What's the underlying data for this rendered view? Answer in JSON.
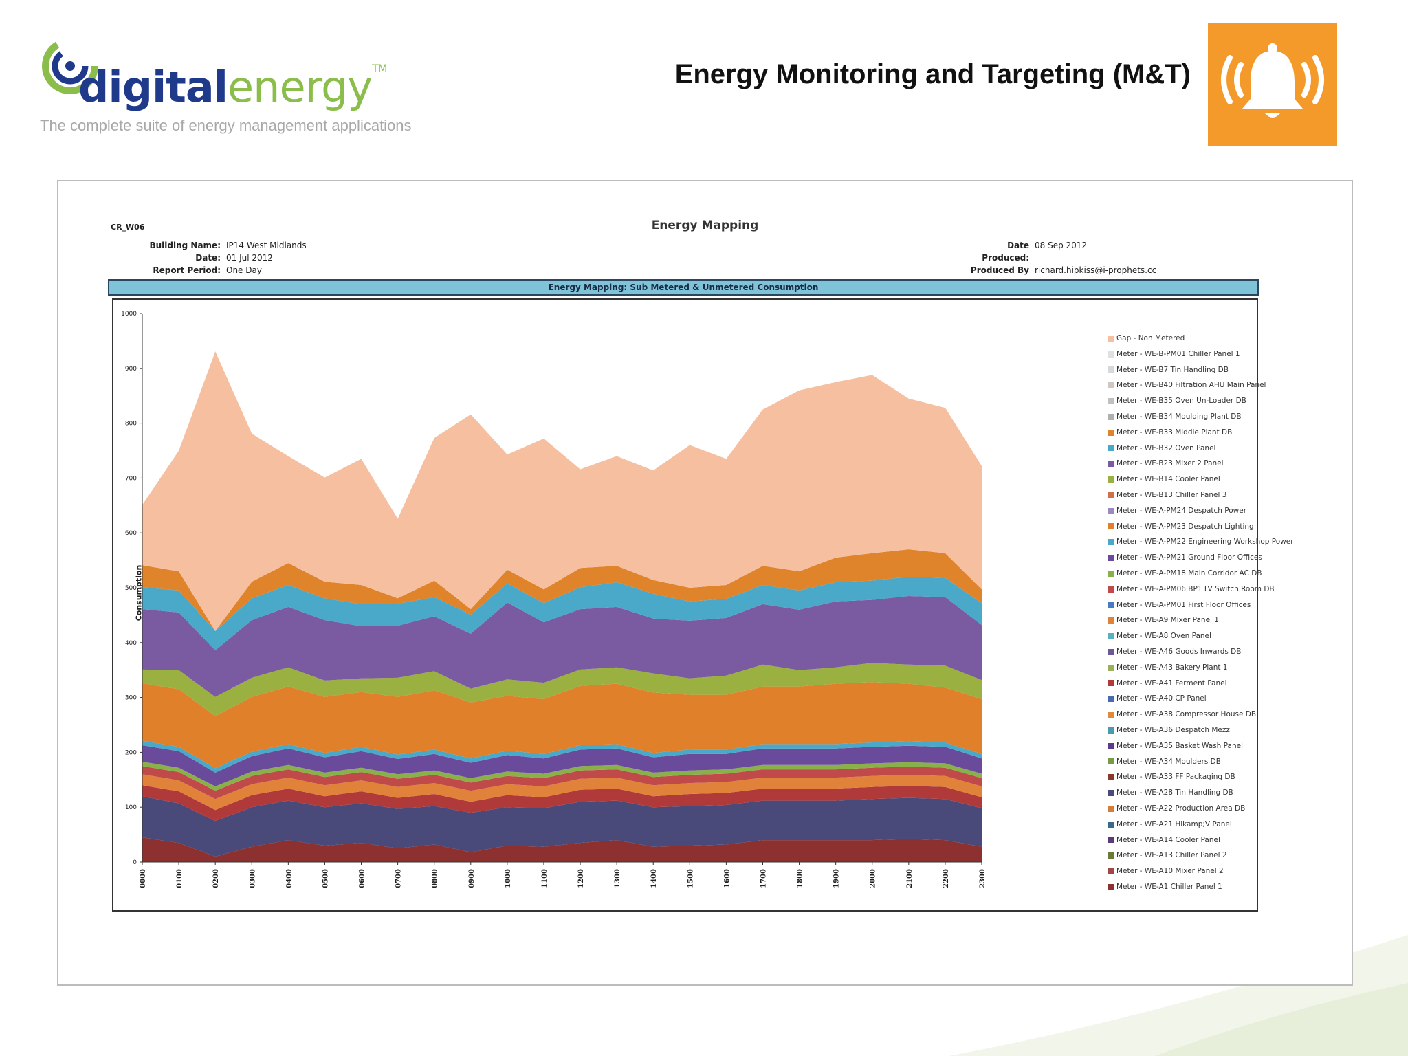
{
  "logo": {
    "word_dark": "digital",
    "word_light": "energy",
    "tm": "TM",
    "tagline": "The complete suite of energy management applications"
  },
  "header": {
    "title": "Energy Monitoring and Targeting (M&T)",
    "icon": "bell-alarm-icon"
  },
  "colors": {
    "accent": "#f39a2b",
    "logo_blue": "#1f3a8a",
    "logo_green": "#8bbd4a",
    "banner": "#7ec3d8"
  },
  "report": {
    "id": "CR_W06",
    "title": "Energy Mapping",
    "meta_left": [
      {
        "label": "Building Name:",
        "value": "IP14 West Midlands"
      },
      {
        "label": "Date:",
        "value": "01 Jul 2012"
      },
      {
        "label": "Report Period:",
        "value": "One Day"
      }
    ],
    "meta_right": [
      {
        "label": "Date Produced:",
        "value": "08 Sep 2012"
      },
      {
        "label": "Produced By :",
        "value": "richard.hipkiss@i-prophets.cc"
      }
    ],
    "banner": "Energy Mapping: Sub Metered & Unmetered Consumption"
  },
  "chart_data": {
    "type": "area",
    "stacked": true,
    "title": "Energy Mapping: Sub Metered & Unmetered Consumption",
    "ylabel": "Consumption",
    "xlabel": "",
    "ylim": [
      0,
      1000
    ],
    "yticks": [
      0,
      100,
      200,
      300,
      400,
      500,
      600,
      700,
      800,
      900,
      1000
    ],
    "categories": [
      "0000",
      "0100",
      "0200",
      "0300",
      "0400",
      "0500",
      "0600",
      "0700",
      "0800",
      "0900",
      "1000",
      "1100",
      "1200",
      "1300",
      "1400",
      "1500",
      "1600",
      "1700",
      "1800",
      "1900",
      "2000",
      "2100",
      "2200",
      "2300"
    ],
    "legend_position": "right",
    "series": [
      {
        "name": "Meter - WE-A1 Chiller Panel 1",
        "color": "#8c3030",
        "values": [
          45,
          35,
          10,
          28,
          40,
          30,
          35,
          25,
          32,
          18,
          30,
          28,
          35,
          40,
          28,
          30,
          32,
          40,
          40,
          40,
          40,
          42,
          40,
          28
        ]
      },
      {
        "name": "Meter - WE-A10 Mixer Panel 2",
        "color": "#a04848",
        "values": [
          0,
          0,
          0,
          0,
          0,
          0,
          0,
          0,
          0,
          0,
          0,
          0,
          0,
          0,
          0,
          0,
          0,
          0,
          0,
          0,
          0,
          0,
          0,
          0
        ]
      },
      {
        "name": "Meter - WE-A13 Chiller Panel 2",
        "color": "#6a7a3a",
        "values": [
          0,
          0,
          0,
          0,
          0,
          0,
          0,
          0,
          0,
          0,
          0,
          0,
          0,
          0,
          0,
          0,
          0,
          0,
          0,
          0,
          0,
          0,
          0,
          0
        ]
      },
      {
        "name": "Meter - WE-A14 Cooler Panel",
        "color": "#5a3a7a",
        "values": [
          0,
          0,
          0,
          0,
          0,
          0,
          0,
          0,
          0,
          0,
          0,
          0,
          0,
          0,
          0,
          0,
          0,
          0,
          0,
          0,
          0,
          0,
          0,
          0
        ]
      },
      {
        "name": "Meter - WE-A21 Hikamp;V Panel",
        "color": "#3a6a8a",
        "values": [
          0,
          0,
          0,
          0,
          0,
          0,
          0,
          0,
          0,
          0,
          0,
          0,
          0,
          0,
          0,
          0,
          0,
          0,
          0,
          0,
          0,
          0,
          0,
          0
        ]
      },
      {
        "name": "Meter - WE-A22 Production Area DB",
        "color": "#d47e3a",
        "values": [
          0,
          0,
          0,
          0,
          0,
          0,
          0,
          0,
          0,
          0,
          0,
          0,
          0,
          0,
          0,
          0,
          0,
          0,
          0,
          0,
          0,
          0,
          0,
          0
        ]
      },
      {
        "name": "Meter - WE-A28 Tin Handling DB",
        "color": "#4a4a7a",
        "values": [
          75,
          72,
          65,
          72,
          72,
          70,
          72,
          72,
          70,
          72,
          70,
          70,
          75,
          72,
          72,
          72,
          72,
          72,
          72,
          72,
          75,
          75,
          75,
          70
        ]
      },
      {
        "name": "Meter - WE-A33 FF Packaging DB",
        "color": "#8a3a2a",
        "values": [
          0,
          0,
          0,
          0,
          0,
          0,
          0,
          0,
          0,
          0,
          0,
          0,
          0,
          0,
          0,
          0,
          0,
          0,
          0,
          0,
          0,
          0,
          0,
          0
        ]
      },
      {
        "name": "Meter - WE-A34 Moulders DB",
        "color": "#7a9a4a",
        "values": [
          0,
          0,
          0,
          0,
          0,
          0,
          0,
          0,
          0,
          0,
          0,
          0,
          0,
          0,
          0,
          0,
          0,
          0,
          0,
          0,
          0,
          0,
          0,
          0
        ]
      },
      {
        "name": "Meter - WE-A35 Basket Wash Panel",
        "color": "#5a3a8a",
        "values": [
          0,
          0,
          0,
          0,
          0,
          0,
          0,
          0,
          0,
          0,
          0,
          0,
          0,
          0,
          0,
          0,
          0,
          0,
          0,
          0,
          0,
          0,
          0,
          0
        ]
      },
      {
        "name": "Meter - WE-A36 Despatch Mezz",
        "color": "#4a9ab0",
        "values": [
          0,
          0,
          0,
          0,
          0,
          0,
          0,
          0,
          0,
          0,
          0,
          0,
          0,
          0,
          0,
          0,
          0,
          0,
          0,
          0,
          0,
          0,
          0,
          0
        ]
      },
      {
        "name": "Meter - WE-A38 Compressor House DB",
        "color": "#e08a3a",
        "values": [
          0,
          0,
          0,
          0,
          0,
          0,
          0,
          0,
          0,
          0,
          0,
          0,
          0,
          0,
          0,
          0,
          0,
          0,
          0,
          0,
          0,
          0,
          0,
          0
        ]
      },
      {
        "name": "Meter - WE-A40 CP Panel",
        "color": "#4a6ab0",
        "values": [
          0,
          0,
          0,
          0,
          0,
          0,
          0,
          0,
          0,
          0,
          0,
          0,
          0,
          0,
          0,
          0,
          0,
          0,
          0,
          0,
          0,
          0,
          0,
          0
        ]
      },
      {
        "name": "Meter - WE-A41 Ferment Panel",
        "color": "#b03a3a",
        "values": [
          20,
          22,
          20,
          22,
          22,
          20,
          22,
          20,
          22,
          20,
          22,
          20,
          22,
          22,
          20,
          22,
          22,
          22,
          22,
          22,
          22,
          22,
          22,
          20
        ]
      },
      {
        "name": "Meter - WE-A43 Bakery Plant 1",
        "color": "#9ab05a",
        "values": [
          0,
          0,
          0,
          0,
          0,
          0,
          0,
          0,
          0,
          0,
          0,
          0,
          0,
          0,
          0,
          0,
          0,
          0,
          0,
          0,
          0,
          0,
          0,
          0
        ]
      },
      {
        "name": "Meter - WE-A46 Goods Inwards DB",
        "color": "#6a5a9a",
        "values": [
          0,
          0,
          0,
          0,
          0,
          0,
          0,
          0,
          0,
          0,
          0,
          0,
          0,
          0,
          0,
          0,
          0,
          0,
          0,
          0,
          0,
          0,
          0,
          0
        ]
      },
      {
        "name": "Meter - WE-A8 Oven Panel",
        "color": "#5ab0c0",
        "values": [
          0,
          0,
          0,
          0,
          0,
          0,
          0,
          0,
          0,
          0,
          0,
          0,
          0,
          0,
          0,
          0,
          0,
          0,
          0,
          0,
          0,
          0,
          0,
          0
        ]
      },
      {
        "name": "Meter - WE-A9 Mixer Panel 1",
        "color": "#e0823a",
        "values": [
          20,
          20,
          20,
          20,
          20,
          20,
          20,
          20,
          20,
          20,
          20,
          20,
          20,
          20,
          20,
          20,
          20,
          20,
          20,
          20,
          20,
          20,
          20,
          20
        ]
      },
      {
        "name": "Meter - WE-A-PM01 First Floor Offices",
        "color": "#4a7ac0",
        "values": [
          0,
          0,
          0,
          0,
          0,
          0,
          0,
          0,
          0,
          0,
          0,
          0,
          0,
          0,
          0,
          0,
          0,
          0,
          0,
          0,
          0,
          0,
          0,
          0
        ]
      },
      {
        "name": "Meter - WE-A-PM06 BP1 LV Switch Room DB",
        "color": "#c04a4a",
        "values": [
          15,
          15,
          15,
          15,
          15,
          15,
          15,
          15,
          15,
          15,
          15,
          15,
          15,
          15,
          15,
          15,
          15,
          15,
          15,
          15,
          15,
          15,
          15,
          15
        ]
      },
      {
        "name": "Meter - WE-A-PM18 Main Corridor AC DB",
        "color": "#8ab04a",
        "values": [
          8,
          8,
          8,
          8,
          8,
          8,
          8,
          8,
          8,
          8,
          8,
          8,
          8,
          8,
          8,
          8,
          8,
          8,
          8,
          8,
          8,
          8,
          8,
          8
        ]
      },
      {
        "name": "Meter - WE-A-PM21 Ground Floor Offices",
        "color": "#6a4a9a",
        "values": [
          30,
          30,
          25,
          28,
          30,
          28,
          30,
          28,
          30,
          28,
          30,
          28,
          30,
          30,
          28,
          30,
          28,
          30,
          30,
          30,
          30,
          30,
          30,
          28
        ]
      },
      {
        "name": "Meter - WE-A-PM22 Engineering Workshop Power",
        "color": "#4aa8c8",
        "values": [
          8,
          8,
          8,
          8,
          8,
          8,
          8,
          8,
          8,
          8,
          8,
          8,
          8,
          8,
          8,
          8,
          8,
          8,
          8,
          8,
          8,
          8,
          8,
          8
        ]
      },
      {
        "name": "Meter - WE-A-PM23 Despatch Lighting",
        "color": "#e0802a",
        "values": [
          105,
          105,
          95,
          100,
          105,
          102,
          100,
          105,
          108,
          102,
          100,
          100,
          108,
          110,
          110,
          100,
          100,
          105,
          105,
          110,
          110,
          105,
          100,
          100
        ]
      },
      {
        "name": "Meter - WE-A-PM24 Despatch Power",
        "color": "#9a8ac0",
        "values": [
          0,
          0,
          0,
          0,
          0,
          0,
          0,
          0,
          0,
          0,
          0,
          0,
          0,
          0,
          0,
          0,
          0,
          0,
          0,
          0,
          0,
          0,
          0,
          0
        ]
      },
      {
        "name": "Meter - WE-B13 Chiller Panel 3",
        "color": "#d0704a",
        "values": [
          0,
          0,
          0,
          0,
          0,
          0,
          0,
          0,
          0,
          0,
          0,
          0,
          0,
          0,
          0,
          0,
          0,
          0,
          0,
          0,
          0,
          0,
          0,
          0
        ]
      },
      {
        "name": "Meter - WE-B14 Cooler Panel",
        "color": "#9ab040",
        "values": [
          25,
          35,
          35,
          35,
          35,
          30,
          25,
          35,
          35,
          25,
          30,
          30,
          30,
          30,
          35,
          30,
          35,
          40,
          30,
          30,
          35,
          35,
          40,
          35
        ]
      },
      {
        "name": "Meter - WE-B23 Mixer 2 Panel",
        "color": "#7a5aa0",
        "values": [
          110,
          105,
          85,
          105,
          110,
          110,
          95,
          95,
          100,
          100,
          140,
          110,
          110,
          110,
          100,
          105,
          105,
          110,
          110,
          120,
          115,
          125,
          125,
          100
        ]
      },
      {
        "name": "Meter - WE-B32 Oven Panel",
        "color": "#4aa8c8",
        "values": [
          40,
          40,
          35,
          40,
          40,
          40,
          40,
          40,
          35,
          35,
          35,
          35,
          40,
          45,
          45,
          35,
          35,
          35,
          35,
          35,
          35,
          35,
          35,
          40
        ]
      },
      {
        "name": "Meter - WE-B33 Middle Plant DB",
        "color": "#e0842c",
        "values": [
          40,
          35,
          0,
          30,
          40,
          30,
          35,
          10,
          30,
          10,
          25,
          25,
          35,
          30,
          25,
          25,
          25,
          35,
          35,
          45,
          50,
          50,
          45,
          25
        ]
      },
      {
        "name": "Meter - WE-B34 Moulding Plant DB",
        "color": "#b0b0b0",
        "values": [
          0,
          0,
          0,
          0,
          0,
          0,
          0,
          0,
          0,
          0,
          0,
          0,
          0,
          0,
          0,
          0,
          0,
          0,
          0,
          0,
          0,
          0,
          0,
          0
        ]
      },
      {
        "name": "Meter - WE-B35 Oven Un-Loader DB",
        "color": "#c0c0c0",
        "values": [
          0,
          0,
          0,
          0,
          0,
          0,
          0,
          0,
          0,
          0,
          0,
          0,
          0,
          0,
          0,
          0,
          0,
          0,
          0,
          0,
          0,
          0,
          0,
          0
        ]
      },
      {
        "name": "Meter - WE-B40 Filtration AHU Main Panel",
        "color": "#d0c8c0",
        "values": [
          0,
          0,
          0,
          0,
          0,
          0,
          0,
          0,
          0,
          0,
          0,
          0,
          0,
          0,
          0,
          0,
          0,
          0,
          0,
          0,
          0,
          0,
          0,
          0
        ]
      },
      {
        "name": "Meter - WE-B7 Tin Handling DB",
        "color": "#d8d8d8",
        "values": [
          0,
          0,
          0,
          0,
          0,
          0,
          0,
          0,
          0,
          0,
          0,
          0,
          0,
          0,
          0,
          0,
          0,
          0,
          0,
          0,
          0,
          0,
          0,
          0
        ]
      },
      {
        "name": "Meter - WE-B-PM01 Chiller Panel 1",
        "color": "#e0e0e0",
        "values": [
          0,
          0,
          0,
          0,
          0,
          0,
          0,
          0,
          0,
          0,
          0,
          0,
          0,
          0,
          0,
          0,
          0,
          0,
          0,
          0,
          0,
          0,
          0,
          0
        ]
      },
      {
        "name": "Gap - Non Metered",
        "color": "#f5bfa0",
        "values": [
          110,
          220,
          510,
          270,
          195,
          190,
          230,
          145,
          260,
          355,
          210,
          275,
          180,
          200,
          200,
          260,
          230,
          285,
          330,
          320,
          325,
          275,
          265,
          225
        ]
      }
    ]
  }
}
